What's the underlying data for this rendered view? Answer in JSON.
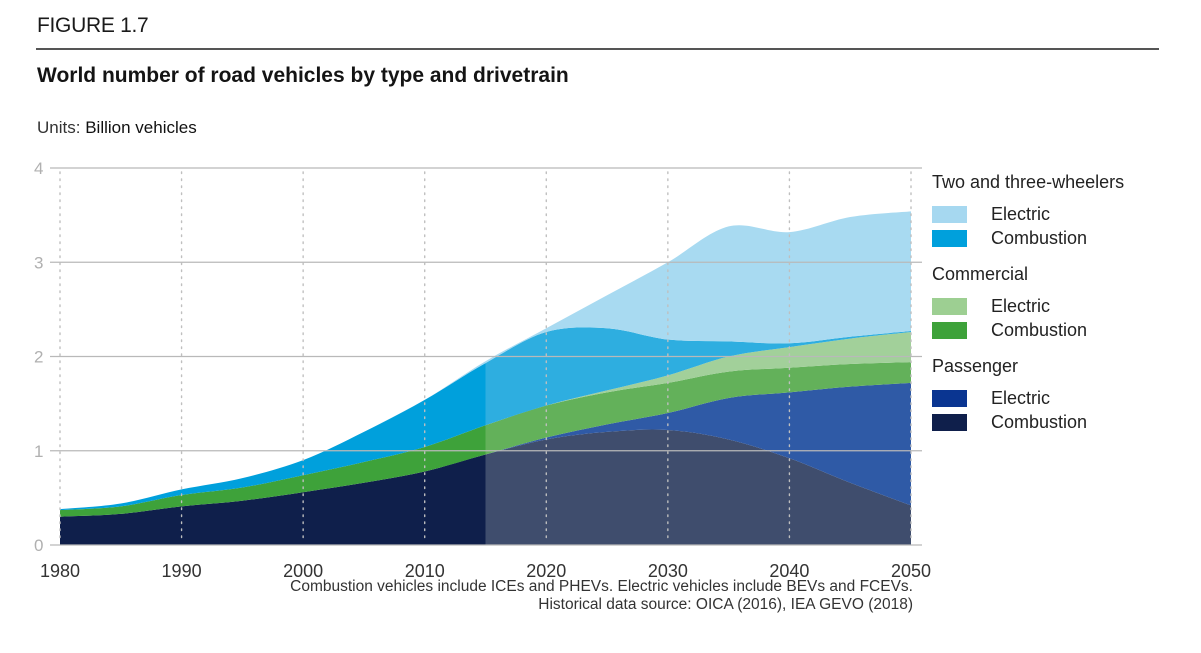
{
  "figure_label": "FIGURE 1.7",
  "title": "World number of road vehicles by type and drivetrain",
  "units": {
    "prefix": "Units:",
    "value": "Billion vehicles"
  },
  "notes": [
    "Combustion vehicles include ICEs and PHEVs. Electric vehicles include BEVs and FCEVs.",
    "Historical data source: OICA (2016), IEA GEVO (2018)"
  ],
  "legend": [
    {
      "group": "Two and three-wheelers",
      "items": [
        {
          "label": "Electric",
          "color": "#a6d8f0"
        },
        {
          "label": "Combustion",
          "color": "#00a0dc"
        }
      ]
    },
    {
      "group": "Commercial",
      "items": [
        {
          "label": "Electric",
          "color": "#9dcf92"
        },
        {
          "label": "Combustion",
          "color": "#3ea23a"
        }
      ]
    },
    {
      "group": "Passenger",
      "items": [
        {
          "label": "Electric",
          "color": "#0a3591"
        },
        {
          "label": "Combustion",
          "color": "#0f1f4b"
        }
      ]
    }
  ],
  "chart_data": {
    "type": "area",
    "stacked": true,
    "title": "World number of road vehicles by type and drivetrain",
    "xlabel": "",
    "ylabel": "Billion vehicles",
    "x": [
      1980,
      1985,
      1990,
      1995,
      2000,
      2005,
      2010,
      2015,
      2020,
      2025,
      2030,
      2035,
      2040,
      2045,
      2050
    ],
    "xticks": [
      1980,
      1990,
      2000,
      2010,
      2020,
      2030,
      2040,
      2050
    ],
    "yticks": [
      0,
      1,
      2,
      3,
      4
    ],
    "ylim": [
      0,
      4
    ],
    "xlim": [
      1980,
      2050
    ],
    "forecast_start": 2015,
    "grid": {
      "horizontal": "solid",
      "vertical": "dotted"
    },
    "legend_position": "right",
    "series": [
      {
        "name": "Passenger - Combustion",
        "color": "#0f1f4b",
        "forecast_color": "#3f4d6d",
        "values": [
          0.3,
          0.33,
          0.41,
          0.47,
          0.56,
          0.66,
          0.78,
          0.96,
          1.12,
          1.2,
          1.22,
          1.12,
          0.92,
          0.66,
          0.42
        ]
      },
      {
        "name": "Passenger - Electric",
        "color": "#0a3591",
        "forecast_color": "#2f5aa6",
        "values": [
          0.0,
          0.0,
          0.0,
          0.0,
          0.0,
          0.0,
          0.0,
          0.0,
          0.02,
          0.08,
          0.18,
          0.44,
          0.7,
          1.02,
          1.3
        ]
      },
      {
        "name": "Commercial - Combustion",
        "color": "#3ea23a",
        "forecast_color": "#63b15a",
        "values": [
          0.07,
          0.08,
          0.12,
          0.14,
          0.18,
          0.22,
          0.26,
          0.31,
          0.34,
          0.34,
          0.32,
          0.28,
          0.26,
          0.24,
          0.22
        ]
      },
      {
        "name": "Commercial - Electric",
        "color": "#9dcf92",
        "forecast_color": "#a2d09a",
        "values": [
          0.0,
          0.0,
          0.0,
          0.0,
          0.0,
          0.0,
          0.0,
          0.0,
          0.0,
          0.02,
          0.08,
          0.16,
          0.22,
          0.27,
          0.32
        ]
      },
      {
        "name": "Two and three-wheelers - Combustion",
        "color": "#00a0dc",
        "forecast_color": "#2eaee0",
        "values": [
          0.01,
          0.03,
          0.06,
          0.1,
          0.16,
          0.32,
          0.5,
          0.66,
          0.78,
          0.66,
          0.38,
          0.16,
          0.04,
          0.02,
          0.01
        ]
      },
      {
        "name": "Two and three-wheelers - Electric",
        "color": "#a6d8f0",
        "forecast_color": "#a8daf1",
        "values": [
          0.0,
          0.0,
          0.0,
          0.0,
          0.0,
          0.0,
          0.0,
          0.02,
          0.04,
          0.35,
          0.82,
          1.22,
          1.18,
          1.27,
          1.27
        ]
      }
    ]
  }
}
